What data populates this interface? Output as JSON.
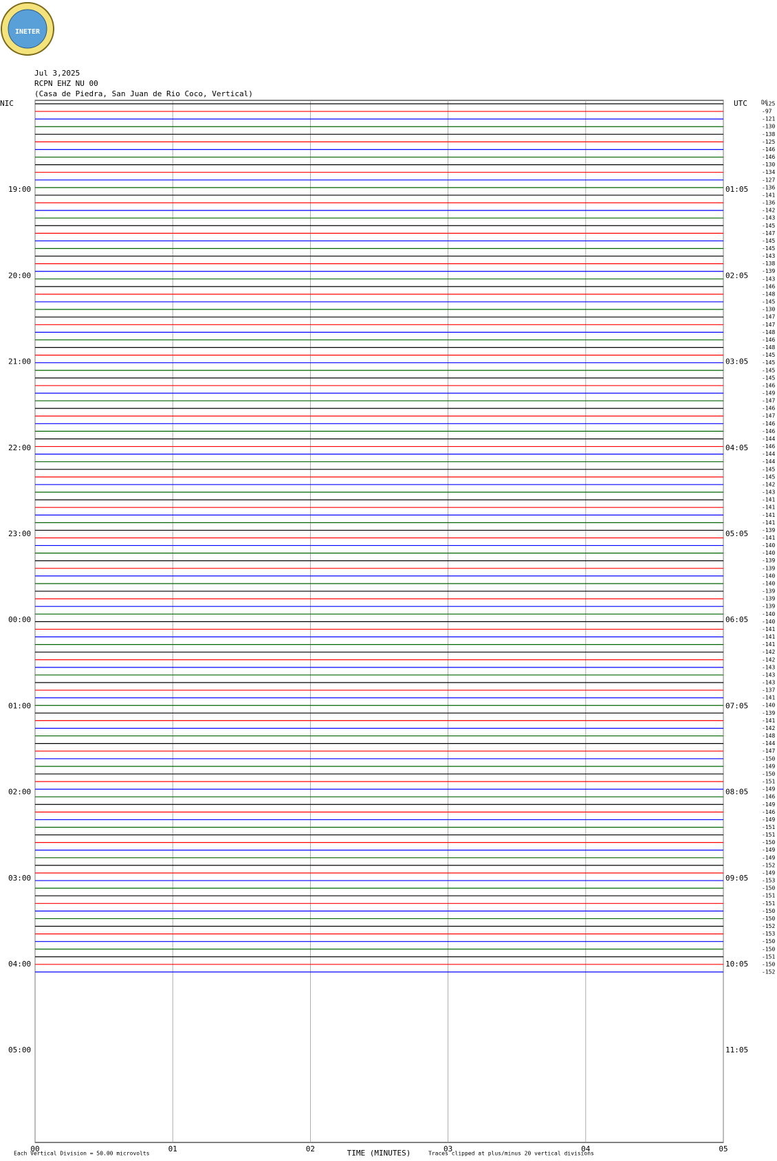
{
  "logo_text": "INETER",
  "chart_data": {
    "type": "helicorder",
    "date": "Jul 3,2025",
    "station": "RCPN EHZ NU 00",
    "location": "(Casa de Piedra, San Juan de Rio Coco, Vertical)",
    "left_zone": "NIC",
    "right_zone": "UTC",
    "offset_header": "DC",
    "left_hours": [
      "19:00",
      "20:00",
      "21:00",
      "22:00",
      "23:00",
      "00:00",
      "01:00",
      "02:00",
      "03:00",
      "04:00",
      "05:00"
    ],
    "right_hours": [
      "01:05",
      "02:05",
      "03:05",
      "04:05",
      "05:05",
      "06:05",
      "07:05",
      "08:05",
      "09:05",
      "10:05",
      "11:05"
    ],
    "colors": [
      "#000000",
      "#ff0000",
      "#0000ff",
      "#006400"
    ],
    "offsets": [
      -125,
      -97,
      -121,
      -130,
      -138,
      -125,
      -146,
      -146,
      -130,
      -134,
      -127,
      -136,
      -141,
      -136,
      -142,
      -143,
      -145,
      -147,
      -145,
      -145,
      -143,
      -138,
      -139,
      -143,
      -146,
      -148,
      -145,
      -130,
      -147,
      -147,
      -148,
      -146,
      -148,
      -145,
      -145,
      -145,
      -145,
      -146,
      -149,
      -147,
      -146,
      -147,
      -146,
      -146,
      -144,
      -146,
      -144,
      -144,
      -145,
      -145,
      -142,
      -143,
      -141,
      -141,
      -141,
      -141,
      -139,
      -141,
      -140,
      -140,
      -139,
      -139,
      -140,
      -140,
      -139,
      -139,
      -139,
      -140,
      -140,
      -141,
      -141,
      -141,
      -142,
      -142,
      -143,
      -143,
      -143,
      -137,
      -141,
      -140,
      -139,
      -141,
      -142,
      -148,
      -144,
      -147,
      -150,
      -149,
      -150,
      -151,
      -149,
      -146,
      -149,
      -146,
      -149,
      -151,
      -151,
      -150,
      -149,
      -149,
      -152,
      -149,
      -153,
      -150,
      -151,
      -151,
      -150,
      -150,
      -152,
      -153,
      -150,
      -150,
      -151,
      -150,
      -152
    ],
    "xlim": [
      0,
      5
    ],
    "xticks": [
      {
        "value": 0,
        "label": "00"
      },
      {
        "value": 1,
        "label": "01"
      },
      {
        "value": 2,
        "label": "02"
      },
      {
        "value": 3,
        "label": "03"
      },
      {
        "value": 4,
        "label": "04"
      },
      {
        "value": 5,
        "label": "05"
      }
    ],
    "xlabel": "TIME (MINUTES)",
    "scale_note": "Each Vertical Division =   50.00 microvolts",
    "clip_note": "Traces clipped at plus/minus 20 vertical divisions"
  }
}
